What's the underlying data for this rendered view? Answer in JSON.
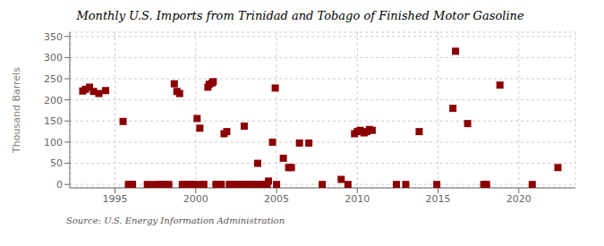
{
  "chart_data": {
    "type": "scatter",
    "title": "Monthly U.S. Imports from Trinidad and Tobago of Finished Motor Gasoline",
    "ylabel": "Thousand Barrels",
    "source": "Source: U.S. Energy Information Administration",
    "color": "#8B0000",
    "marker": "square",
    "grid": true,
    "xlim": [
      1992.2,
      2023.5
    ],
    "ylim": [
      -8,
      360
    ],
    "xticks": [
      1995,
      2000,
      2005,
      2010,
      2015,
      2020
    ],
    "yticks": [
      0,
      50,
      100,
      150,
      200,
      250,
      300,
      350
    ],
    "x": [
      1993.0,
      1993.17,
      1993.42,
      1993.67,
      1994.0,
      1994.42,
      1995.5,
      1995.83,
      1996.0,
      1996.08,
      1997.0,
      1997.42,
      1997.75,
      1997.92,
      1998.08,
      1998.33,
      1998.67,
      1998.83,
      1999.0,
      1999.17,
      1999.33,
      1999.5,
      1999.67,
      1999.83,
      2000.0,
      2000.08,
      2000.25,
      2000.42,
      2000.5,
      2000.75,
      2000.83,
      2001.0,
      2001.08,
      2001.25,
      2001.33,
      2001.42,
      2001.5,
      2001.58,
      2001.75,
      2001.92,
      2002.08,
      2002.17,
      2002.33,
      2002.42,
      2002.5,
      2002.67,
      2002.83,
      2003.0,
      2003.08,
      2003.25,
      2003.42,
      2003.5,
      2003.67,
      2003.83,
      2004.0,
      2004.17,
      2004.33,
      2004.42,
      2004.5,
      2004.75,
      2004.92,
      2005.0,
      2005.42,
      2005.75,
      2005.92,
      2006.42,
      2007.0,
      2007.83,
      2009.0,
      2009.42,
      2009.83,
      2010.0,
      2010.17,
      2010.42,
      2010.58,
      2010.75,
      2010.92,
      2012.42,
      2013.0,
      2013.83,
      2014.92,
      2015.92,
      2016.08,
      2016.83,
      2017.83,
      2018.0,
      2018.83,
      2020.83,
      2022.42
    ],
    "values": [
      221,
      225,
      230,
      220,
      215,
      222,
      149,
      0,
      0,
      0,
      0,
      0,
      0,
      0,
      0,
      0,
      238,
      220,
      215,
      0,
      0,
      0,
      0,
      0,
      0,
      156,
      133,
      0,
      0,
      230,
      237,
      240,
      243,
      0,
      0,
      0,
      0,
      0,
      120,
      125,
      0,
      0,
      0,
      0,
      0,
      0,
      0,
      138,
      0,
      0,
      0,
      0,
      0,
      50,
      0,
      0,
      0,
      0,
      8,
      100,
      228,
      0,
      62,
      40,
      40,
      98,
      98,
      0,
      12,
      0,
      120,
      125,
      128,
      122,
      125,
      130,
      128,
      0,
      0,
      125,
      0,
      180,
      315,
      144,
      0,
      0,
      235,
      0,
      40
    ]
  }
}
